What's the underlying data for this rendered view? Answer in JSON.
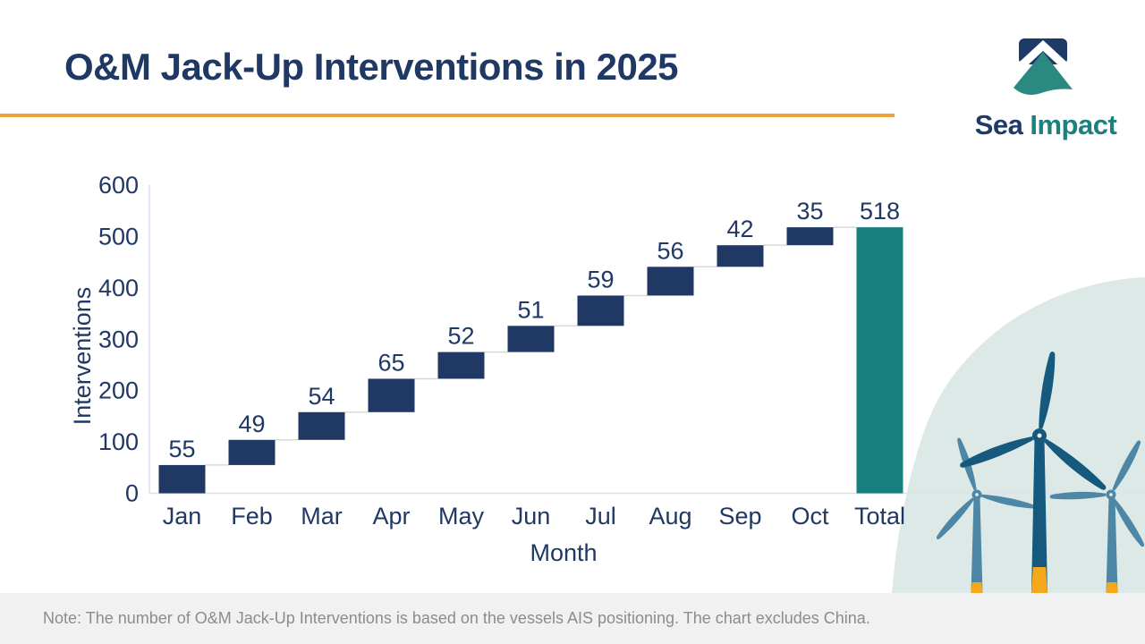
{
  "header": {
    "title": "O&M Jack-Up Interventions in 2025",
    "accent_color": "#EDA33C",
    "title_color": "#1F3864"
  },
  "logo": {
    "text_primary": "Sea",
    "text_secondary": "Impact",
    "primary_color": "#1E3A66",
    "secondary_color": "#1B807E"
  },
  "chart_data": {
    "type": "bar",
    "subtype": "waterfall",
    "title": "",
    "xlabel": "Month",
    "ylabel": "Interventions",
    "categories": [
      "Jan",
      "Feb",
      "Mar",
      "Apr",
      "May",
      "Jun",
      "Jul",
      "Aug",
      "Sep",
      "Oct",
      "Total"
    ],
    "values": [
      55,
      49,
      54,
      65,
      52,
      51,
      59,
      56,
      42,
      35,
      518
    ],
    "total_index": 10,
    "running_total": [
      55,
      104,
      158,
      223,
      275,
      326,
      385,
      441,
      483,
      518,
      518
    ],
    "ylim": [
      0,
      600
    ],
    "yticks": [
      0,
      100,
      200,
      300,
      400,
      500,
      600
    ],
    "grid": false,
    "legend": "none",
    "bar_color": "#1F3864",
    "total_color": "#17807E",
    "connector_color": "#D9D9D9",
    "axis_line_color": "#D9E2F3",
    "label_color": "#203864"
  },
  "note": {
    "text": "Note: The number of O&M Jack-Up Interventions is based on the vessels AIS positioning. The chart excludes China."
  }
}
